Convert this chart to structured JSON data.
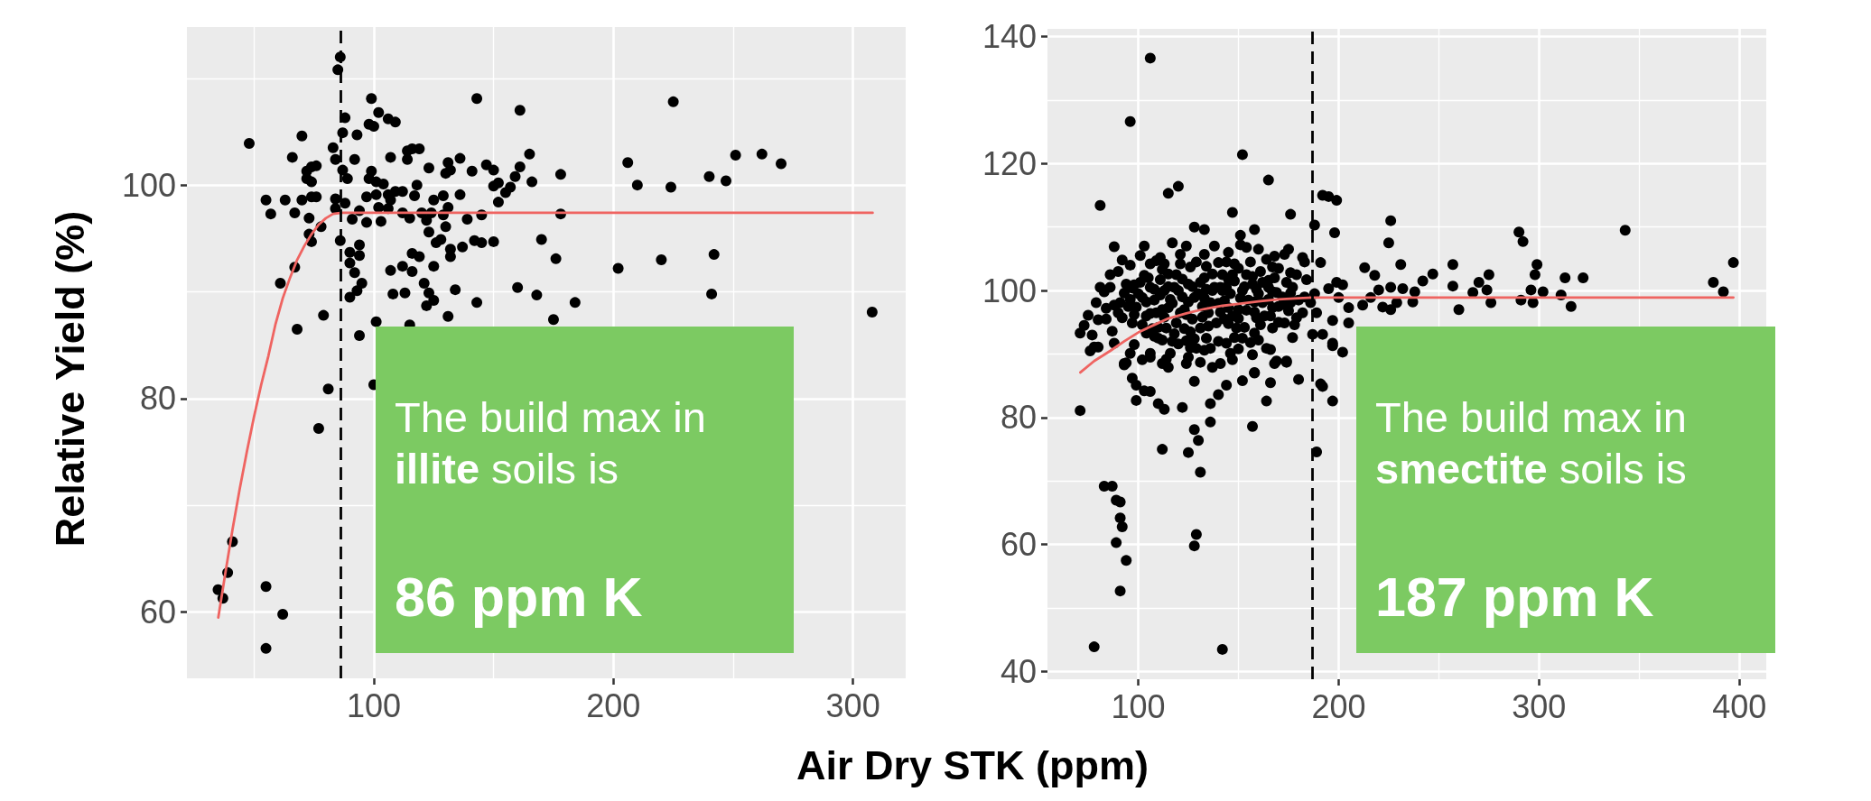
{
  "chart_data": [
    {
      "type": "scatter",
      "ylabel": "Relative Yield (%)",
      "xlabel": "Air Dry STK (ppm)",
      "xlim": [
        22,
        322
      ],
      "ylim": [
        53.8,
        114.8
      ],
      "xticks": [
        {
          "value": 50,
          "label": null
        },
        100,
        {
          "value": 150,
          "label": null
        },
        200,
        {
          "value": 250,
          "label": null
        },
        300
      ],
      "yticks": [
        60,
        {
          "value": 70,
          "label": null
        },
        80,
        {
          "value": 90,
          "label": null
        },
        100,
        {
          "value": 110,
          "label": null
        }
      ],
      "grid": true,
      "marker": "circle",
      "series": [
        {
          "color": "#000000",
          "x": [
            86,
            85,
            48,
            70,
            99,
            143,
            161,
            225,
            88,
            87,
            93,
            98,
            100,
            102,
            106,
            109,
            83,
            66,
            84,
            92,
            72,
            74,
            76,
            72,
            74,
            87,
            89,
            107,
            114,
            114,
            116,
            119,
            123,
            131,
            136,
            130,
            132,
            141,
            147,
            150,
            159,
            161,
            165,
            166,
            178,
            206,
            210,
            224,
            240,
            247,
            251,
            262,
            270,
            308,
            55,
            63,
            57,
            67,
            70,
            74,
            76,
            73,
            84,
            88,
            84,
            94,
            91,
            97,
            97,
            98,
            99,
            101,
            104,
            101,
            106,
            107,
            109,
            112,
            117,
            118,
            102,
            103,
            106,
            112,
            115,
            120,
            122,
            124,
            125,
            129,
            131,
            129,
            130,
            123,
            128,
            126,
            136,
            139,
            145,
            145,
            150,
            142,
            137,
            132,
            132,
            150,
            152,
            152,
            155,
            157,
            178,
            170,
            176,
            202,
            220,
            242,
            241,
            184,
            175,
            168,
            160,
            143,
            131,
            134,
            122,
            125,
            123,
            121,
            116,
            112,
            107,
            108,
            113,
            119,
            116,
            125,
            101,
            94,
            95,
            93,
            90,
            92,
            90,
            90,
            94,
            94,
            86,
            78,
            74,
            73,
            67,
            61,
            68,
            79,
            115,
            81,
            77,
            100,
            41,
            39,
            35,
            37,
            55,
            62,
            55
          ],
          "values": [
            112.0,
            110.8,
            103.9,
            104.6,
            108.1,
            108.1,
            107.0,
            107.8,
            106.3,
            104.9,
            104.7,
            105.7,
            105.5,
            106.8,
            106.2,
            105.9,
            103.5,
            102.6,
            102.4,
            102.4,
            101.3,
            101.7,
            101.8,
            100.6,
            100.3,
            101.4,
            100.6,
            102.6,
            102.4,
            103.2,
            103.4,
            103.4,
            101.6,
            102.1,
            102.5,
            101.1,
            101.4,
            101.3,
            101.9,
            101.4,
            100.8,
            101.7,
            102.9,
            100.3,
            101.0,
            102.1,
            100.0,
            99.8,
            100.8,
            100.4,
            102.8,
            102.9,
            102.0,
            88.1,
            98.6,
            98.6,
            97.3,
            97.4,
            98.6,
            98.9,
            98.9,
            96.9,
            98.7,
            98.3,
            97.8,
            97.6,
            96.8,
            96.5,
            98.9,
            100.6,
            101.3,
            100.3,
            100.1,
            99.1,
            99.1,
            98.6,
            99.4,
            99.4,
            99.0,
            100.0,
            97.9,
            96.6,
            97.8,
            97.4,
            96.9,
            97.4,
            96.7,
            97.4,
            98.6,
            99.0,
            97.9,
            97.2,
            96.1,
            95.6,
            94.9,
            94.6,
            99.1,
            96.8,
            97.2,
            94.6,
            94.7,
            94.8,
            94.2,
            94.0,
            93.3,
            99.9,
            100.2,
            98.4,
            99.3,
            99.8,
            97.3,
            94.9,
            93.1,
            92.2,
            93.0,
            93.5,
            89.8,
            89.0,
            87.4,
            89.7,
            90.4,
            89.0,
            87.7,
            90.2,
            88.7,
            89.2,
            89.9,
            90.8,
            91.9,
            92.4,
            92.0,
            89.8,
            89.9,
            93.3,
            93.6,
            92.4,
            87.2,
            85.9,
            90.8,
            90.1,
            89.5,
            91.8,
            92.7,
            93.7,
            93.4,
            94.4,
            94.8,
            96.1,
            94.7,
            95.4,
            92.3,
            90.8,
            86.5,
            87.8,
            86.9,
            80.9,
            77.2,
            81.3,
            66.6,
            63.7,
            62.1,
            61.3,
            62.4,
            59.8,
            56.6
          ]
        },
        {
          "type": "line",
          "marker": "none",
          "color": "#ef6461",
          "x": [
            35.1,
            38,
            41,
            44,
            47,
            50,
            53,
            56,
            59,
            62,
            65,
            68,
            71,
            74,
            77,
            80,
            83,
            86.6,
            308.2
          ],
          "values": [
            59.5,
            63.6,
            67.7,
            71.5,
            75.0,
            78.3,
            81.3,
            84.0,
            87.0,
            89.4,
            91.3,
            93.0,
            94.3,
            95.4,
            96.3,
            96.9,
            97.3,
            97.4,
            97.4
          ]
        }
      ],
      "ref_lines": [
        {
          "axis": "x",
          "value": 86,
          "color": "#000000",
          "line_style": "dashed"
        }
      ],
      "annotations": [
        "The build max in",
        "illite",
        "soils is",
        "86 ppm K"
      ]
    },
    {
      "type": "scatter",
      "xlim": [
        54.7,
        413.4
      ],
      "ylim": [
        38.8,
        141.2
      ],
      "xticks": [
        100,
        {
          "value": 150,
          "label": null
        },
        200,
        {
          "value": 250,
          "label": null
        },
        300,
        {
          "value": 350,
          "label": null
        },
        400
      ],
      "yticks": [
        40,
        {
          "value": 50,
          "label": null
        },
        60,
        {
          "value": 70,
          "label": null
        },
        80,
        {
          "value": 90,
          "label": null
        },
        100,
        {
          "value": 110,
          "label": null
        },
        120,
        {
          "value": 130,
          "label": null
        },
        140
      ],
      "grid": true,
      "marker": "circle",
      "series": [
        {
          "color": "#000000",
          "x": [
            106,
            96,
            81,
            115,
            120,
            152,
            165,
            147,
            176,
            192,
            195,
            199,
            188,
            198,
            226,
            225,
            231,
            213,
            218,
            290,
            292,
            343,
            397,
            387,
            392,
            257,
            257,
            260,
            247,
            242,
            238,
            237,
            275,
            270,
            267,
            274,
            276,
            299,
            298,
            296,
            302,
            291,
            297,
            313,
            322,
            311,
            316,
            232,
            226,
            220,
            216,
            212,
            222,
            226,
            229,
            205,
            205,
            202,
            197,
            197,
            192,
            187,
            191,
            188,
            189,
            199,
            202,
            195,
            200,
            71,
            78,
            142,
            83,
            87,
            89,
            91,
            91,
            92,
            89,
            94,
            91,
            129,
            128,
            112,
            125,
            130,
            131,
            128,
            136,
            157,
            189,
            122,
            99,
            113,
            110,
            136,
            140,
            164,
            197,
            191,
            192,
            180,
            166,
            158,
            152,
            144,
            128,
            106,
            103,
            99,
            97,
            94,
            93,
            115,
            112,
            76,
            80,
            174,
            168,
            157,
            147,
            137,
            197,
            166,
            102,
            106,
            125,
            131,
            71,
            73,
            75,
            79,
            81,
            83,
            88,
            78,
            88,
            93,
            97,
            101,
            98,
            99,
            88,
            91,
            92,
            104,
            106,
            114,
            116,
            121,
            128,
            133,
            133,
            112,
            111,
            109,
            151,
            151,
            154,
            158,
            160,
            164,
            167,
            173,
            175,
            182,
            183,
            179,
            140,
            144,
            147,
            141,
            154,
            162,
            169,
            176,
            182,
            179,
            173,
            167,
            158,
            152,
            144,
            136,
            129,
            124,
            119,
            115,
            111,
            106,
            111,
            119,
            126,
            131,
            128,
            136,
            145,
            154,
            162,
            139,
            131,
            149,
            159,
            167,
            174,
            184,
            186,
            101,
            102,
            109,
            114,
            96,
            141,
            158,
            146,
            164,
            169,
            174,
            124,
            100,
            105,
            108,
            113,
            117,
            120,
            123,
            125,
            127,
            130,
            133,
            135,
            138,
            140,
            142,
            143,
            146,
            148,
            150,
            152,
            155,
            157,
            160,
            163,
            165,
            168,
            170,
            172,
            177,
            180,
            104,
            107,
            110,
            117,
            121,
            126,
            134,
            137,
            144,
            150,
            156,
            129,
            122,
            118,
            112,
            132,
            147,
            161,
            170,
            95,
            94,
            90,
            86,
            84,
            96,
            103,
            117,
            124,
            138,
            145,
            112,
            120,
            128,
            140,
            148,
            156,
            102,
            110,
            123,
            135,
            145,
            153,
            161,
            170,
            178,
            98,
            106,
            113,
            124,
            132,
            141,
            150,
            158,
            166,
            175,
            96,
            104,
            116,
            125,
            133,
            143,
            151,
            158,
            165,
            172,
            183,
            97,
            108,
            115,
            127,
            134,
            142,
            153,
            159,
            167,
            176,
            103,
            115,
            122,
            137,
            145,
            157,
            165,
            176,
            106,
            113,
            121,
            134,
            148,
            168,
            98,
            108,
            118,
            126,
            133,
            150,
            160,
            177,
            77,
            80,
            84,
            87,
            90,
            93,
            86,
            92
          ],
          "values": [
            136.6,
            126.6,
            113.4,
            115.3,
            116.4,
            121.4,
            117.4,
            112.3,
            112.0,
            115.0,
            114.8,
            114.2,
            110.3,
            109.1,
            111.0,
            107.5,
            104.1,
            103.6,
            102.4,
            109.2,
            107.7,
            109.5,
            104.4,
            101.3,
            99.8,
            104.1,
            100.7,
            97.0,
            102.6,
            101.5,
            99.8,
            98.2,
            102.5,
            101.3,
            99.7,
            100.1,
            98.1,
            104.1,
            102.5,
            100.1,
            99.8,
            98.5,
            98.1,
            102.0,
            102.0,
            99.3,
            97.5,
            100.3,
            100.5,
            100.1,
            98.9,
            97.7,
            97.4,
            97.0,
            98.1,
            97.3,
            94.9,
            90.3,
            91.7,
            95.3,
            93.1,
            93.1,
            104.4,
            99.5,
            96.5,
            101.3,
            100.9,
            100.3,
            98.9,
            81.1,
            43.9,
            43.5,
            69.2,
            69.2,
            67.0,
            66.7,
            64.2,
            62.8,
            60.3,
            57.5,
            52.7,
            61.6,
            59.8,
            75.0,
            74.5,
            76.4,
            71.4,
            78.1,
            79.3,
            78.6,
            74.6,
            81.6,
            82.7,
            81.3,
            82.2,
            82.2,
            83.6,
            82.6,
            82.6,
            85.3,
            84.9,
            86.0,
            85.5,
            87.0,
            85.8,
            85.1,
            85.7,
            84.1,
            84.2,
            85.1,
            86.2,
            88.6,
            88.3,
            87.9,
            88.5,
            90.5,
            91.1,
            88.7,
            88.5,
            89.9,
            89.1,
            87.9,
            91.3,
            90.7,
            89.1,
            89.5,
            89.5,
            88.7,
            93.3,
            94.5,
            96.1,
            98.1,
            100.5,
            99.8,
            106.9,
            91.1,
            91.7,
            88.5,
            94.9,
            105.5,
            100.9,
            97.4,
            97.7,
            98.1,
            95.7,
            93.3,
            90.1,
            89.2,
            90.1,
            105.7,
            110.0,
            109.6,
            105.7,
            103.3,
            105.2,
            104.7,
            108.7,
            107.2,
            106.8,
            109.6,
            106.5,
            104.9,
            103.7,
            105.7,
            106.5,
            105.2,
            104.5,
            102.5,
            104.4,
            104.5,
            102.5,
            100.5,
            102.5,
            101.3,
            99.7,
            98.1,
            96.5,
            95.7,
            94.9,
            94.1,
            93.3,
            92.5,
            91.7,
            90.9,
            90.9,
            92.1,
            94.9,
            97.3,
            99.3,
            100.5,
            101.7,
            102.5,
            103.7,
            101.3,
            98.9,
            98.1,
            97.3,
            96.9,
            98.1,
            94.9,
            94.1,
            94.1,
            95.7,
            97.3,
            101.3,
            101.7,
            98.1,
            101.3,
            98.9,
            96.5,
            94.1,
            90.1,
            88.5,
            87.1,
            90.1,
            90.9,
            88.9,
            88.9,
            88.5,
            99.5,
            102.0,
            98.5,
            100.0,
            98.0,
            100.0,
            97.0,
            101.0,
            95.5,
            99.5,
            102.0,
            96.5,
            100.5,
            98.0,
            102.5,
            95.5,
            99.5,
            101.5,
            97.0,
            100.0,
            98.5,
            101.0,
            99.5,
            96.0,
            100.5,
            102.0,
            97.5,
            99.0,
            100.5,
            98.5,
            96.0,
            94.0,
            92.5,
            92.0,
            96.5,
            93.5,
            92.5,
            100.0,
            100.5,
            103.5,
            104.5,
            104.5,
            99.0,
            100.5,
            97.0,
            97.5,
            96.0,
            103.0,
            103.5,
            97.5,
            101.0,
            103.0,
            100.5,
            95.5,
            104.0,
            107.0,
            107.5,
            107.0,
            107.0,
            106.0,
            92.2,
            91.6,
            92.4,
            92.0,
            92.6,
            91.8,
            94.6,
            94.2,
            94.0,
            94.4,
            94.8,
            94.2,
            94.6,
            95.0,
            94.6,
            96.2,
            96.4,
            95.8,
            96.2,
            95.8,
            96.6,
            95.6,
            96.6,
            96.0,
            96.8,
            98.6,
            98.2,
            98.6,
            98.2,
            98.8,
            98.4,
            98.8,
            98.2,
            98.6,
            97.8,
            99.0,
            100.4,
            100.2,
            100.6,
            100.6,
            100.2,
            100.0,
            100.6,
            100.2,
            99.8,
            99.6,
            102.4,
            102.6,
            101.8,
            102.6,
            101.8,
            102.2,
            101.6,
            102.8,
            104.2,
            104.2,
            104.2,
            103.8,
            104.2,
            105.4,
            91.5,
            92.8,
            93.2,
            91.0,
            90.6,
            90.8,
            92.2,
            92.6,
            93.0,
            95.4,
            97.2,
            93.6,
            96.5,
            99.6,
            102.5,
            104.8
          ]
        },
        {
          "type": "line",
          "marker": "none",
          "color": "#ef6461",
          "x": [
            71.1,
            78,
            86,
            93,
            100,
            108,
            115,
            124,
            133,
            142,
            150,
            160,
            170,
            180,
            187,
            397
          ],
          "values": [
            87.1,
            88.9,
            90.5,
            92.0,
            93.4,
            94.6,
            95.6,
            96.4,
            97.1,
            97.6,
            97.9,
            98.3,
            98.6,
            98.8,
            98.9,
            98.9
          ]
        }
      ],
      "ref_lines": [
        {
          "axis": "x",
          "value": 187,
          "color": "#000000",
          "line_style": "dashed"
        }
      ],
      "annotations": [
        "The build max in",
        "smectite",
        "soils is",
        "187 ppm K"
      ]
    }
  ]
}
